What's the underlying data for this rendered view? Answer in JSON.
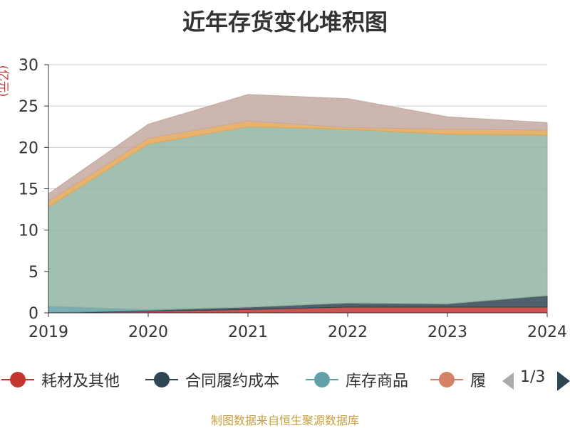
{
  "title": "近年存货变化堆积图",
  "unit": "(亿元)",
  "source": "制图数据来自恒生聚源数据库",
  "legend_pager": "1/3",
  "chart_data": {
    "type": "area",
    "stacked": true,
    "x": [
      "2019",
      "2020",
      "2021",
      "2022",
      "2023",
      "2024"
    ],
    "ylim": [
      0,
      30
    ],
    "yticks": [
      "0",
      "5",
      "10",
      "15",
      "20",
      "25",
      "30"
    ],
    "grid": true,
    "legend_position": "bottom",
    "series": [
      {
        "name": "耗材及其他",
        "color": "#c23531",
        "values": [
          0.0,
          0.2,
          0.4,
          0.7,
          0.7,
          0.7
        ]
      },
      {
        "name": "合同履约成本",
        "color": "#2f4554",
        "values": [
          0.0,
          0.1,
          0.3,
          0.5,
          0.4,
          1.4
        ]
      },
      {
        "name": "库存商品",
        "color": "#61a0a8",
        "values": [
          0.8,
          0.1,
          0.0,
          0.0,
          0.0,
          0.0
        ]
      },
      {
        "name": "履",
        "color": "#d48265",
        "values": [
          0.0,
          0.0,
          0.0,
          0.0,
          0.0,
          0.0
        ]
      },
      {
        "name": "",
        "color": "#91b5a2",
        "values": [
          12.0,
          20.0,
          21.8,
          21.0,
          20.5,
          19.4
        ]
      },
      {
        "name": "",
        "color": "#e3a655",
        "values": [
          0.7,
          0.7,
          0.7,
          0.2,
          0.6,
          0.6
        ]
      },
      {
        "name": "",
        "color": "#c4a9a2",
        "values": [
          0.9,
          1.7,
          3.2,
          3.5,
          1.5,
          0.9
        ]
      }
    ]
  }
}
